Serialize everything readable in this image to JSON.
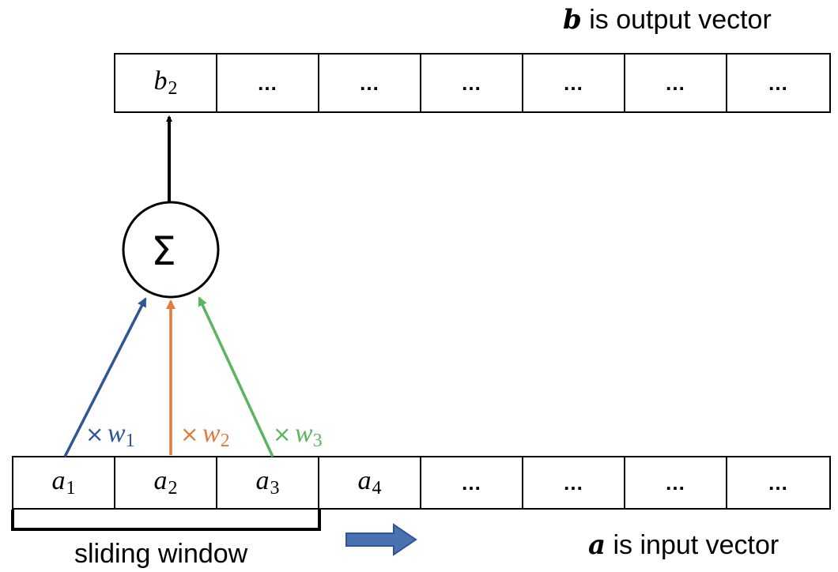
{
  "output_caption": {
    "var": "b",
    "text": " is output vector"
  },
  "input_caption": {
    "var": "a",
    "text": " is input vector"
  },
  "window_label": "sliding window",
  "sum_symbol": "Σ",
  "output_cells": [
    {
      "kind": "math",
      "base": "b",
      "sub": "2"
    },
    {
      "kind": "ellipsis",
      "text": "…"
    },
    {
      "kind": "ellipsis",
      "text": "…"
    },
    {
      "kind": "ellipsis",
      "text": "…"
    },
    {
      "kind": "ellipsis",
      "text": "…"
    },
    {
      "kind": "ellipsis",
      "text": "…"
    },
    {
      "kind": "ellipsis",
      "text": "…"
    }
  ],
  "input_cells": [
    {
      "kind": "math",
      "base": "a",
      "sub": "1"
    },
    {
      "kind": "math",
      "base": "a",
      "sub": "2"
    },
    {
      "kind": "math",
      "base": "a",
      "sub": "3"
    },
    {
      "kind": "math",
      "base": "a",
      "sub": "4"
    },
    {
      "kind": "ellipsis",
      "text": "…"
    },
    {
      "kind": "ellipsis",
      "text": "…"
    },
    {
      "kind": "ellipsis",
      "text": "…"
    },
    {
      "kind": "ellipsis",
      "text": "…"
    }
  ],
  "weights": [
    {
      "times": "×",
      "base": "w",
      "sub": "1",
      "color": "#2f5597"
    },
    {
      "times": "×",
      "base": "w",
      "sub": "2",
      "color": "#e07b39"
    },
    {
      "times": "×",
      "base": "w",
      "sub": "3",
      "color": "#5bb55e"
    }
  ],
  "colors": {
    "slide_arrow": "#4a72b0",
    "slide_arrow_border": "#2f5597"
  }
}
